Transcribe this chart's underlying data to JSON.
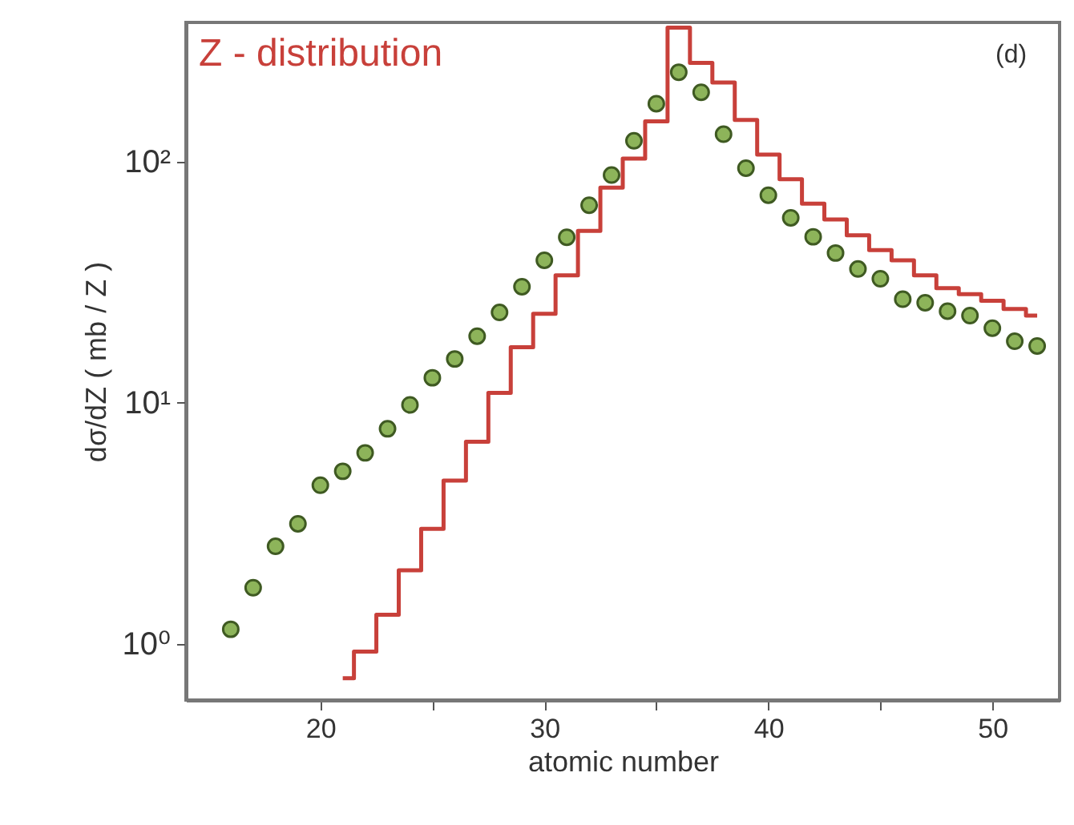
{
  "chart_data": {
    "type": "scatter",
    "xlabel": "atomic number",
    "ylabel": "dσ/dZ  ( mb / Z )",
    "annotations": [
      "(d)"
    ],
    "log": "y",
    "grid": false,
    "legend": false,
    "marker": "circle",
    "xlim": [
      14,
      53
    ],
    "xticks": [
      20,
      {
        "value": 25,
        "label": null
      },
      30,
      {
        "value": 35,
        "label": null
      },
      40,
      {
        "value": 45,
        "label": null
      },
      50
    ],
    "ylim": [
      0.585,
      378
    ],
    "yticks": [
      {
        "value": 1,
        "label": "10⁰"
      },
      {
        "value": 10,
        "label": "10¹"
      },
      {
        "value": 100,
        "label": "10²"
      }
    ],
    "series": [
      {
        "name": "Z - distribution",
        "type": "step",
        "marker": "none",
        "color": "#c8403a",
        "x": [
          21,
          22,
          23,
          24,
          25,
          26,
          27,
          28,
          29,
          30,
          31,
          32,
          33,
          34,
          35,
          36,
          37,
          38,
          39,
          40,
          41,
          42,
          43,
          44,
          45,
          46,
          47,
          48,
          49,
          50,
          51,
          52
        ],
        "values": [
          0.72,
          0.93,
          1.32,
          2.02,
          3.0,
          4.76,
          6.9,
          11,
          17,
          23.4,
          33.8,
          51.6,
          78,
          103,
          147,
          360,
          257,
          213,
          149,
          107,
          84.5,
          67,
          57.6,
          49.5,
          43,
          39,
          33.8,
          29.9,
          28.2,
          26.5,
          24.5,
          23
        ]
      },
      {
        "color": "#8db45a",
        "x": [
          16,
          17,
          18,
          19,
          20,
          21,
          22,
          23,
          24,
          25,
          26,
          27,
          28,
          29,
          30,
          31,
          32,
          33,
          34,
          35,
          36,
          37,
          38,
          39,
          40,
          41,
          42,
          43,
          44,
          45,
          46,
          47,
          48,
          49,
          50,
          51,
          52
        ],
        "values": [
          1.15,
          1.71,
          2.54,
          3.15,
          4.55,
          5.2,
          6.2,
          7.8,
          9.8,
          12.7,
          15.2,
          18.9,
          23.7,
          30.3,
          39,
          48.6,
          66,
          88,
          122,
          174,
          235,
          194,
          130,
          94,
          72.6,
          58.5,
          48.8,
          41.8,
          35.9,
          32.7,
          26.9,
          26,
          24,
          23,
          20.4,
          18,
          17.2
        ]
      }
    ]
  }
}
